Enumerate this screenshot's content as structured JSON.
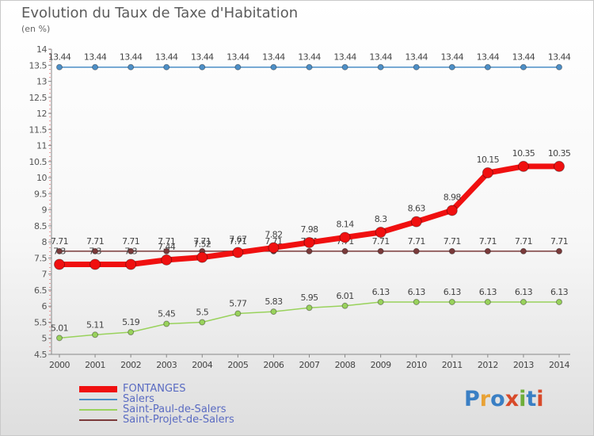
{
  "title": "Evolution du Taux de Taxe d'Habitation",
  "subtitle": "(en %)",
  "logo": {
    "letters": [
      "P",
      "r",
      "o",
      "x",
      "i",
      "t",
      "i"
    ],
    "colors": [
      "#3a7fc4",
      "#e8a236",
      "#3a7fc4",
      "#d84a2a",
      "#6fae3a",
      "#3a7fc4",
      "#d84a2a"
    ]
  },
  "chart_data": {
    "type": "line",
    "x": [
      "2000",
      "2001",
      "2002",
      "2003",
      "2004",
      "2005",
      "2006",
      "2007",
      "2008",
      "2009",
      "2010",
      "2011",
      "2012",
      "2013",
      "2014"
    ],
    "ylim": [
      4.5,
      14
    ],
    "yticks": [
      "4.5",
      "5",
      "5.5",
      "6",
      "6.5",
      "7",
      "7.5",
      "8",
      "8.5",
      "9",
      "9.5",
      "10",
      "10.5",
      "11",
      "11.5",
      "12",
      "12.5",
      "13",
      "13.5",
      "14"
    ],
    "grid": false,
    "legend_position": "bottom-left",
    "series": [
      {
        "name": "Salers",
        "color": "#4d8fc7",
        "width": 1.5,
        "marker": 3.5,
        "values": [
          13.44,
          13.44,
          13.44,
          13.44,
          13.44,
          13.44,
          13.44,
          13.44,
          13.44,
          13.44,
          13.44,
          13.44,
          13.44,
          13.44,
          13.44
        ],
        "labels": [
          "13.44",
          "13.44",
          "13.44",
          "13.44",
          "13.44",
          "13.44",
          "13.44",
          "13.44",
          "13.44",
          "13.44",
          "13.44",
          "13.44",
          "13.44",
          "13.44",
          "13.44"
        ]
      },
      {
        "name": "Saint-Paul-de-Salers",
        "color": "#99d25c",
        "width": 1.5,
        "marker": 3.5,
        "values": [
          5.01,
          5.11,
          5.19,
          5.45,
          5.5,
          5.77,
          5.83,
          5.95,
          6.01,
          6.13,
          6.13,
          6.13,
          6.13,
          6.13,
          6.13
        ],
        "labels": [
          "5.01",
          "5.11",
          "5.19",
          "5.45",
          "5.5",
          "5.77",
          "5.83",
          "5.95",
          "6.01",
          "6.13",
          "6.13",
          "6.13",
          "6.13",
          "6.13",
          "6.13"
        ]
      },
      {
        "name": "Saint-Projet-de-Salers",
        "color": "#7a3a3a",
        "width": 1.5,
        "marker": 3.5,
        "values": [
          7.71,
          7.71,
          7.71,
          7.71,
          7.71,
          7.71,
          7.71,
          7.71,
          7.71,
          7.71,
          7.71,
          7.71,
          7.71,
          7.71,
          7.71
        ],
        "labels": [
          "7.71",
          "7.71",
          "7.71",
          "7.71",
          "7.71",
          "7.71",
          "7.71",
          "7.71",
          "7.71",
          "7.71",
          "7.71",
          "7.71",
          "7.71",
          "7.71",
          "7.71"
        ]
      },
      {
        "name": "FONTANGES",
        "color": "#f01010",
        "width": 7,
        "marker": 6.5,
        "values": [
          7.3,
          7.3,
          7.3,
          7.44,
          7.52,
          7.67,
          7.82,
          7.98,
          8.14,
          8.3,
          8.63,
          8.98,
          10.15,
          10.35,
          10.35
        ],
        "labels": [
          "7.3",
          "7.3",
          "7.3",
          "7.44",
          "7.52",
          "7.67",
          "7.82",
          "7.98",
          "8.14",
          "8.3",
          "8.63",
          "8.98",
          "10.15",
          "10.35",
          "10.35"
        ]
      }
    ],
    "legend_order": [
      "FONTANGES",
      "Salers",
      "Saint-Paul-de-Salers",
      "Saint-Projet-de-Salers"
    ]
  }
}
